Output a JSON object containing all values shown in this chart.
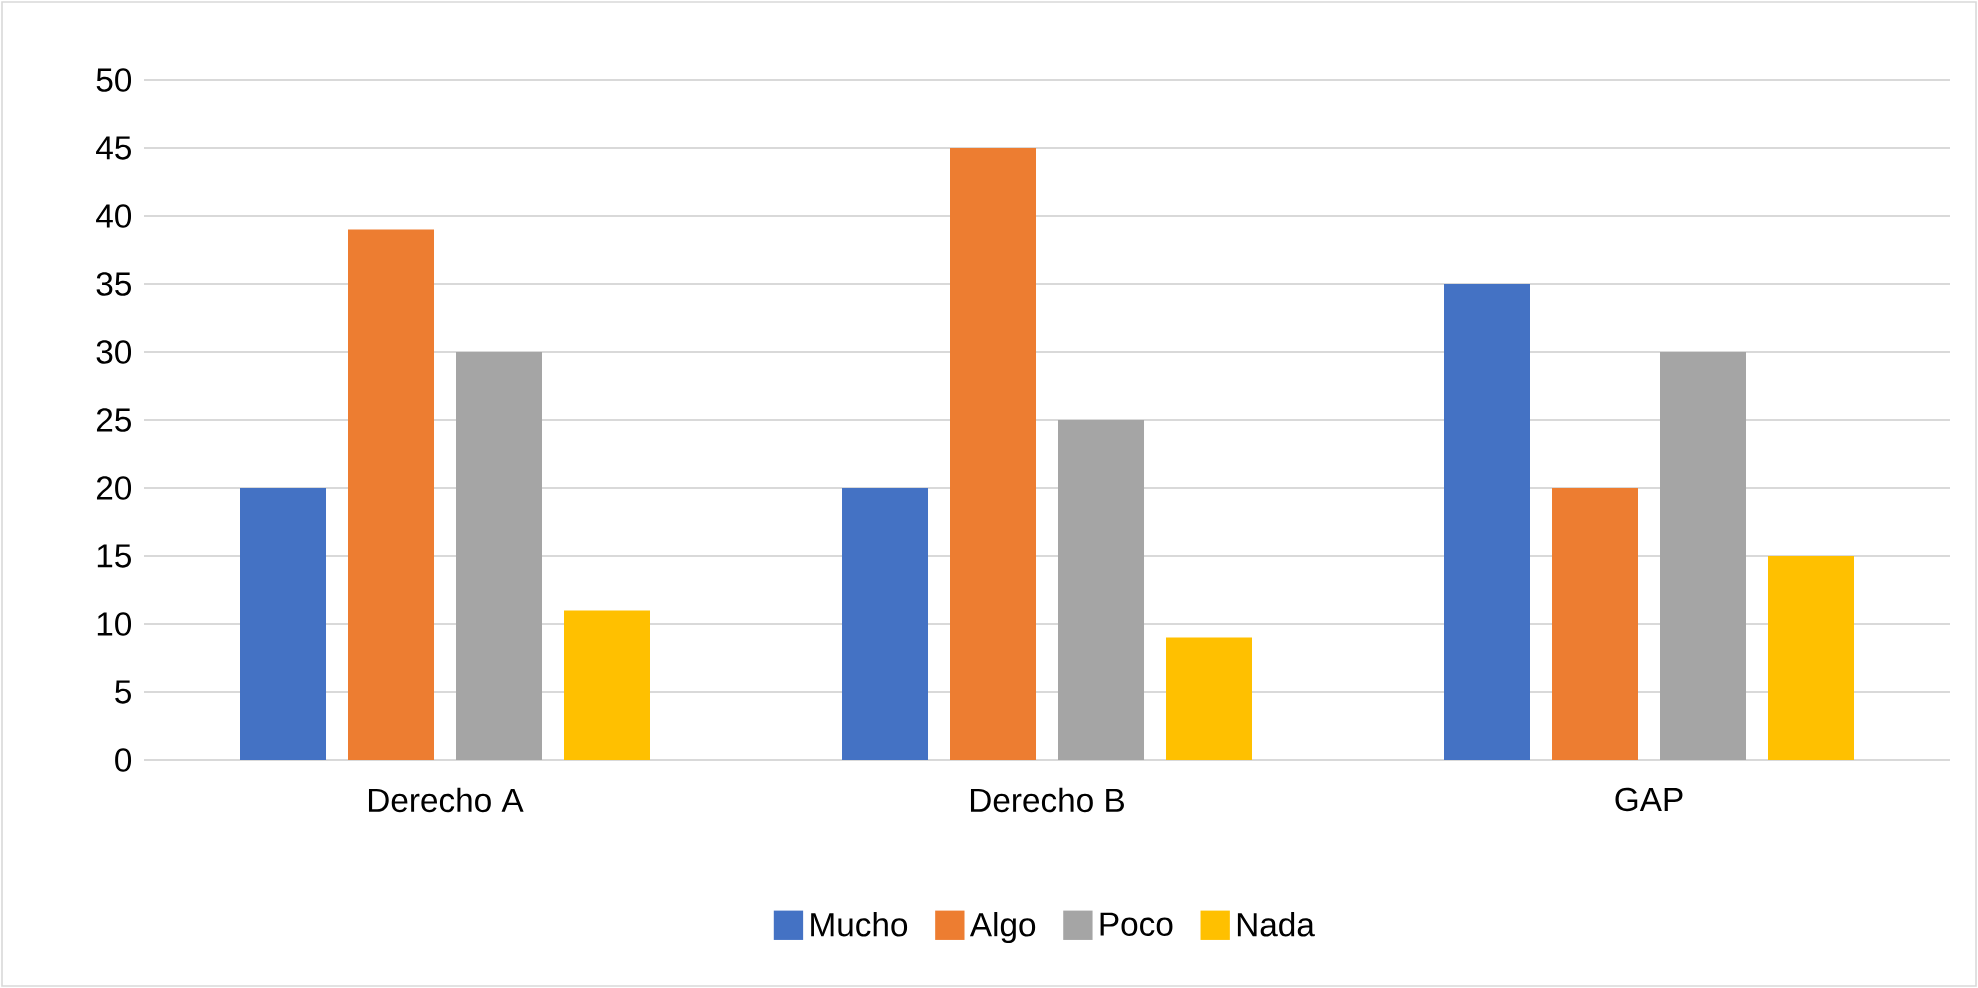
{
  "chart_data": {
    "type": "bar",
    "categories": [
      "Derecho A",
      "Derecho B",
      "GAP"
    ],
    "series": [
      {
        "name": "Mucho",
        "color": "#4472c4",
        "values": [
          20,
          20,
          35
        ]
      },
      {
        "name": "Algo",
        "color": "#ed7d31",
        "values": [
          39,
          45,
          20
        ]
      },
      {
        "name": "Poco",
        "color": "#a5a5a5",
        "values": [
          30,
          25,
          30
        ]
      },
      {
        "name": "Nada",
        "color": "#ffc000",
        "values": [
          11,
          9,
          15
        ]
      }
    ],
    "ylim": [
      0,
      50
    ],
    "yticks": [
      0,
      5,
      10,
      15,
      20,
      25,
      30,
      35,
      40,
      45,
      50
    ],
    "grid": "y",
    "legend": "bottom"
  }
}
